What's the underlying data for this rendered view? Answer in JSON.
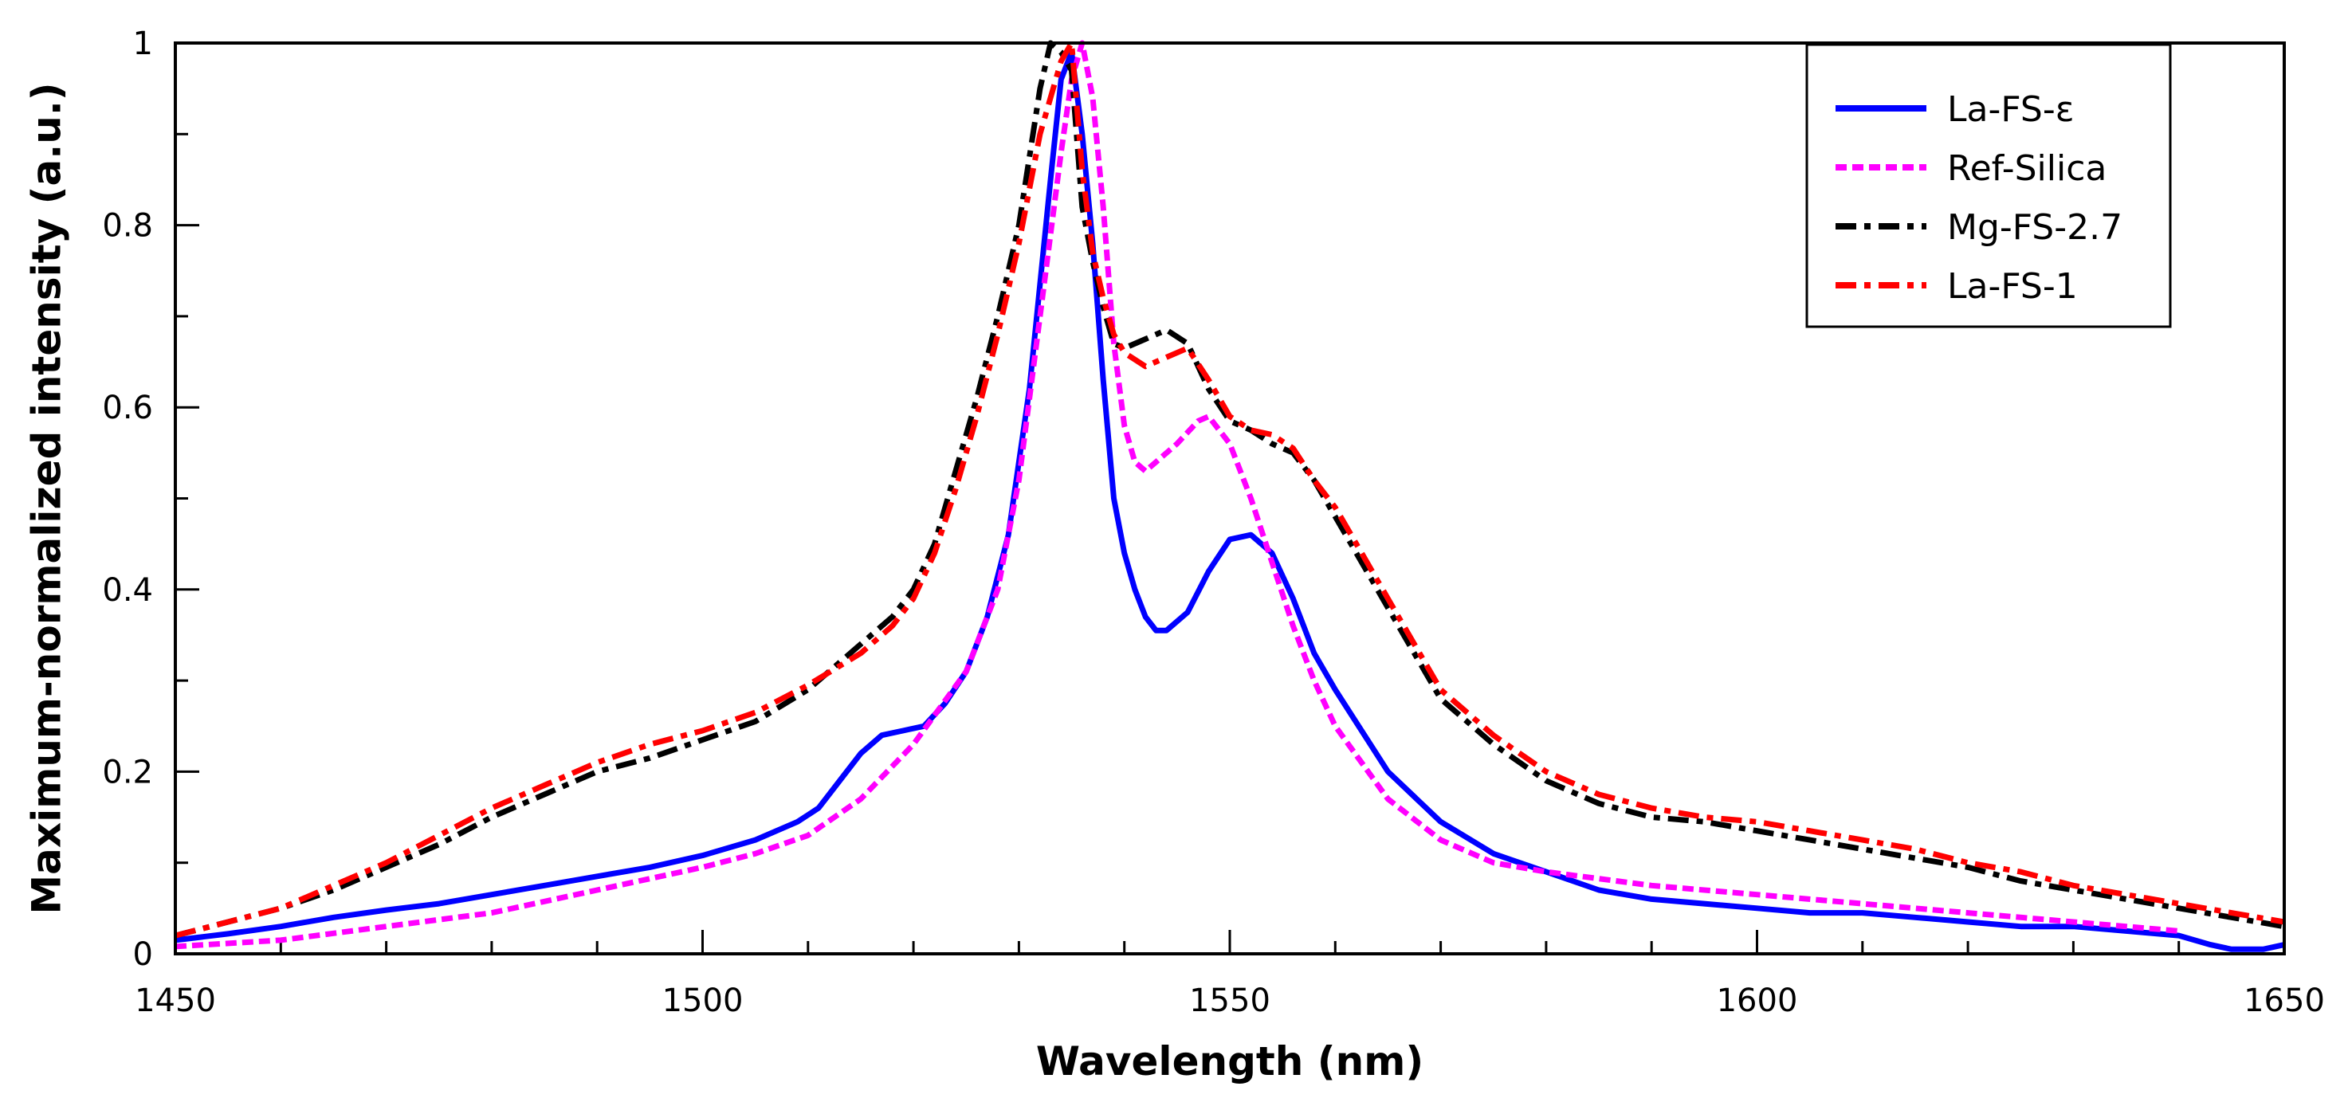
{
  "chart_data": {
    "type": "line",
    "title": "",
    "xlabel": "Wavelength (nm)",
    "ylabel": "Maximum-normalized intensity (a.u.)",
    "xlim": [
      1450,
      1650
    ],
    "ylim": [
      0,
      1
    ],
    "x_ticks": [
      1450,
      1500,
      1550,
      1600,
      1650
    ],
    "x_tick_labels": [
      "1450",
      "1500",
      "1550",
      "1600",
      "1650"
    ],
    "x_minor_step": 10,
    "y_ticks": [
      0,
      0.2,
      0.4,
      0.6,
      0.8,
      1
    ],
    "y_tick_labels": [
      "0",
      "0.2",
      "0.4",
      "0.6",
      "0.8",
      "1"
    ],
    "y_minor_step": 0.1,
    "grid": false,
    "legend_position": "top-right",
    "series": [
      {
        "name": "La-FS-ε",
        "color": "#0000ff",
        "style": "solid",
        "points": [
          [
            1450,
            0.015
          ],
          [
            1455,
            0.022
          ],
          [
            1460,
            0.03
          ],
          [
            1465,
            0.04
          ],
          [
            1470,
            0.048
          ],
          [
            1475,
            0.055
          ],
          [
            1480,
            0.065
          ],
          [
            1485,
            0.075
          ],
          [
            1490,
            0.085
          ],
          [
            1495,
            0.095
          ],
          [
            1500,
            0.108
          ],
          [
            1505,
            0.125
          ],
          [
            1509,
            0.145
          ],
          [
            1511,
            0.16
          ],
          [
            1513,
            0.19
          ],
          [
            1515,
            0.22
          ],
          [
            1517,
            0.24
          ],
          [
            1519,
            0.245
          ],
          [
            1521,
            0.25
          ],
          [
            1523,
            0.275
          ],
          [
            1525,
            0.31
          ],
          [
            1527,
            0.37
          ],
          [
            1529,
            0.46
          ],
          [
            1531,
            0.62
          ],
          [
            1533,
            0.85
          ],
          [
            1534,
            0.96
          ],
          [
            1535,
            0.99
          ],
          [
            1536,
            0.9
          ],
          [
            1537,
            0.78
          ],
          [
            1538,
            0.63
          ],
          [
            1539,
            0.5
          ],
          [
            1540,
            0.44
          ],
          [
            1541,
            0.4
          ],
          [
            1542,
            0.37
          ],
          [
            1543,
            0.355
          ],
          [
            1544,
            0.355
          ],
          [
            1546,
            0.375
          ],
          [
            1548,
            0.42
          ],
          [
            1550,
            0.455
          ],
          [
            1552,
            0.46
          ],
          [
            1554,
            0.44
          ],
          [
            1556,
            0.39
          ],
          [
            1558,
            0.33
          ],
          [
            1560,
            0.29
          ],
          [
            1565,
            0.2
          ],
          [
            1570,
            0.145
          ],
          [
            1575,
            0.11
          ],
          [
            1580,
            0.09
          ],
          [
            1585,
            0.07
          ],
          [
            1590,
            0.06
          ],
          [
            1595,
            0.055
          ],
          [
            1600,
            0.05
          ],
          [
            1605,
            0.045
          ],
          [
            1610,
            0.045
          ],
          [
            1615,
            0.04
          ],
          [
            1620,
            0.035
          ],
          [
            1625,
            0.03
          ],
          [
            1630,
            0.03
          ],
          [
            1635,
            0.025
          ],
          [
            1640,
            0.02
          ],
          [
            1643,
            0.01
          ],
          [
            1645,
            0.005
          ],
          [
            1648,
            0.005
          ],
          [
            1650,
            0.01
          ]
        ]
      },
      {
        "name": "Ref-Silica",
        "color": "#ff00ff",
        "style": "dotted",
        "points": [
          [
            1450,
            0.008
          ],
          [
            1460,
            0.015
          ],
          [
            1470,
            0.03
          ],
          [
            1480,
            0.045
          ],
          [
            1490,
            0.07
          ],
          [
            1500,
            0.095
          ],
          [
            1505,
            0.11
          ],
          [
            1510,
            0.13
          ],
          [
            1515,
            0.17
          ],
          [
            1520,
            0.23
          ],
          [
            1525,
            0.31
          ],
          [
            1528,
            0.4
          ],
          [
            1530,
            0.52
          ],
          [
            1532,
            0.7
          ],
          [
            1534,
            0.88
          ],
          [
            1535,
            0.96
          ],
          [
            1536,
            1.0
          ],
          [
            1537,
            0.94
          ],
          [
            1538,
            0.82
          ],
          [
            1539,
            0.67
          ],
          [
            1540,
            0.58
          ],
          [
            1541,
            0.54
          ],
          [
            1542,
            0.53
          ],
          [
            1543,
            0.54
          ],
          [
            1545,
            0.56
          ],
          [
            1547,
            0.585
          ],
          [
            1548,
            0.59
          ],
          [
            1550,
            0.56
          ],
          [
            1552,
            0.5
          ],
          [
            1554,
            0.43
          ],
          [
            1556,
            0.36
          ],
          [
            1558,
            0.3
          ],
          [
            1560,
            0.25
          ],
          [
            1565,
            0.17
          ],
          [
            1570,
            0.125
          ],
          [
            1575,
            0.1
          ],
          [
            1580,
            0.09
          ],
          [
            1590,
            0.075
          ],
          [
            1600,
            0.065
          ],
          [
            1610,
            0.055
          ],
          [
            1620,
            0.045
          ],
          [
            1630,
            0.035
          ],
          [
            1640,
            0.025
          ]
        ]
      },
      {
        "name": "Mg-FS-2.7",
        "color": "#000000",
        "style": "dashdot",
        "points": [
          [
            1450,
            0.02
          ],
          [
            1455,
            0.035
          ],
          [
            1460,
            0.05
          ],
          [
            1465,
            0.07
          ],
          [
            1470,
            0.095
          ],
          [
            1475,
            0.12
          ],
          [
            1480,
            0.15
          ],
          [
            1485,
            0.175
          ],
          [
            1490,
            0.2
          ],
          [
            1495,
            0.215
          ],
          [
            1500,
            0.235
          ],
          [
            1505,
            0.255
          ],
          [
            1510,
            0.29
          ],
          [
            1515,
            0.34
          ],
          [
            1518,
            0.37
          ],
          [
            1520,
            0.4
          ],
          [
            1522,
            0.45
          ],
          [
            1524,
            0.53
          ],
          [
            1526,
            0.61
          ],
          [
            1528,
            0.7
          ],
          [
            1530,
            0.8
          ],
          [
            1532,
            0.95
          ],
          [
            1533,
            1.0
          ],
          [
            1534,
            0.99
          ],
          [
            1535,
            0.97
          ],
          [
            1536,
            0.82
          ],
          [
            1537,
            0.76
          ],
          [
            1538,
            0.71
          ],
          [
            1539,
            0.67
          ],
          [
            1540,
            0.665
          ],
          [
            1542,
            0.675
          ],
          [
            1544,
            0.685
          ],
          [
            1546,
            0.67
          ],
          [
            1548,
            0.62
          ],
          [
            1550,
            0.585
          ],
          [
            1552,
            0.575
          ],
          [
            1554,
            0.56
          ],
          [
            1556,
            0.55
          ],
          [
            1558,
            0.52
          ],
          [
            1560,
            0.48
          ],
          [
            1562,
            0.44
          ],
          [
            1565,
            0.38
          ],
          [
            1568,
            0.32
          ],
          [
            1570,
            0.28
          ],
          [
            1575,
            0.23
          ],
          [
            1580,
            0.19
          ],
          [
            1585,
            0.165
          ],
          [
            1590,
            0.15
          ],
          [
            1595,
            0.145
          ],
          [
            1600,
            0.135
          ],
          [
            1605,
            0.125
          ],
          [
            1610,
            0.115
          ],
          [
            1615,
            0.105
          ],
          [
            1620,
            0.095
          ],
          [
            1625,
            0.08
          ],
          [
            1630,
            0.07
          ],
          [
            1635,
            0.06
          ],
          [
            1640,
            0.05
          ],
          [
            1645,
            0.04
          ],
          [
            1650,
            0.03
          ]
        ]
      },
      {
        "name": "La-FS-1",
        "color": "#ff0000",
        "style": "dashdot",
        "points": [
          [
            1450,
            0.02
          ],
          [
            1455,
            0.035
          ],
          [
            1460,
            0.05
          ],
          [
            1465,
            0.075
          ],
          [
            1470,
            0.1
          ],
          [
            1475,
            0.13
          ],
          [
            1480,
            0.16
          ],
          [
            1485,
            0.185
          ],
          [
            1490,
            0.21
          ],
          [
            1495,
            0.23
          ],
          [
            1500,
            0.245
          ],
          [
            1505,
            0.265
          ],
          [
            1510,
            0.295
          ],
          [
            1515,
            0.33
          ],
          [
            1518,
            0.36
          ],
          [
            1520,
            0.39
          ],
          [
            1522,
            0.44
          ],
          [
            1524,
            0.51
          ],
          [
            1526,
            0.59
          ],
          [
            1528,
            0.68
          ],
          [
            1530,
            0.78
          ],
          [
            1532,
            0.9
          ],
          [
            1534,
            0.98
          ],
          [
            1535,
            1.0
          ],
          [
            1536,
            0.86
          ],
          [
            1537,
            0.77
          ],
          [
            1538,
            0.72
          ],
          [
            1539,
            0.68
          ],
          [
            1540,
            0.66
          ],
          [
            1542,
            0.645
          ],
          [
            1544,
            0.655
          ],
          [
            1546,
            0.665
          ],
          [
            1548,
            0.63
          ],
          [
            1550,
            0.59
          ],
          [
            1552,
            0.575
          ],
          [
            1554,
            0.57
          ],
          [
            1556,
            0.555
          ],
          [
            1558,
            0.52
          ],
          [
            1560,
            0.49
          ],
          [
            1562,
            0.45
          ],
          [
            1565,
            0.39
          ],
          [
            1568,
            0.33
          ],
          [
            1570,
            0.29
          ],
          [
            1575,
            0.24
          ],
          [
            1580,
            0.2
          ],
          [
            1585,
            0.175
          ],
          [
            1590,
            0.16
          ],
          [
            1595,
            0.15
          ],
          [
            1600,
            0.145
          ],
          [
            1605,
            0.135
          ],
          [
            1610,
            0.125
          ],
          [
            1615,
            0.115
          ],
          [
            1620,
            0.1
          ],
          [
            1625,
            0.09
          ],
          [
            1630,
            0.075
          ],
          [
            1635,
            0.065
          ],
          [
            1640,
            0.055
          ],
          [
            1645,
            0.045
          ],
          [
            1650,
            0.035
          ]
        ]
      }
    ]
  }
}
